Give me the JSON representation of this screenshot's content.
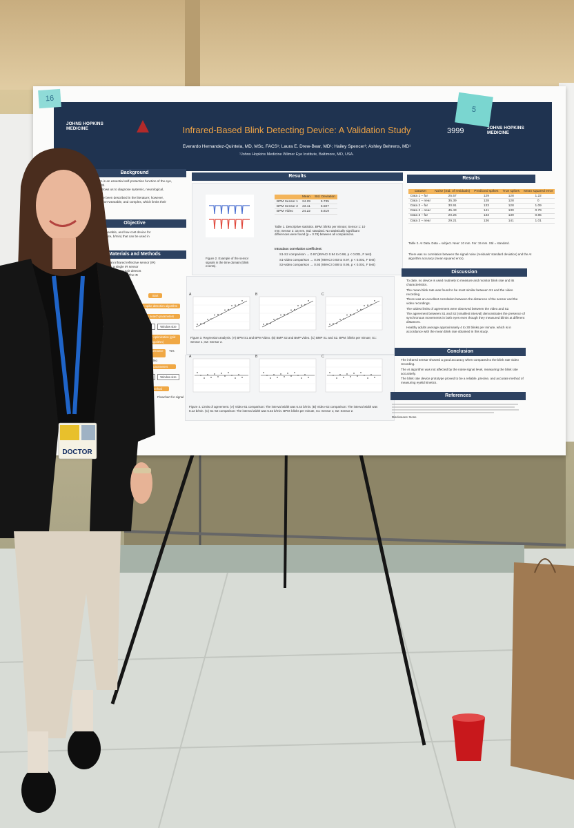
{
  "poster": {
    "logo_left": "JOHNS HOPKINS MEDICINE",
    "logo_right": "JOHNS HOPKINS MEDICINE",
    "title": "Infrared-Based Blink Detecting Device: A Validation Study",
    "number": "3999",
    "authors": "Everardo Hernandez-Quintela, MD, MSc, FACS¹; Laura E. Drew-Bear, MD¹; Hailey Spencer¹; Ashley Behrens, MD¹",
    "affiliation": "¹Johns Hopkins Medicine Wilmer Eye Institute, Baltimore, MD, USA.",
    "background": {
      "heading": "Background",
      "lines": [
        "mechanism is an essential self-protection function of the eye,",
        "ocular health.",
        "dynamics allows us to diagnose systemic, neurological,",
        "diseases.",
        "devices have been described in the literature; however,",
        "expensive, non-wearable, and complex, which limits their"
      ]
    },
    "objective": {
      "heading": "Objective",
      "lines": [
        "date a safe, wearable, and low-cost device for",
        "(blinks per minute, b/min) that can be used in"
      ]
    },
    "methods": {
      "heading": "Materials and Methods",
      "lines": [
        "developed using an infrared reflective sensor (IR)",
        "Each eye side has a single IR sensor",
        "and the IR emitter/detector pair detects",
        "the eyelid and ocular surface. The IR",
        "of the eye on the temple of"
      ],
      "flowchart": [
        "Start",
        "Noise spike detection algorithm",
        "Define search parameters",
        "Threshold",
        "Window size",
        "Parameter optimization (grid algorithm)",
        "Best performance",
        "Yes",
        "No",
        "Optimal parameters",
        "Threshold",
        "Window size",
        "Optimal method"
      ],
      "caption": "Flowchart for signal"
    },
    "results_left": {
      "heading": "Results",
      "figure2_caption": "Figure 2. Example of the sensor signals in the time domain (blink events).",
      "table1": {
        "columns": [
          "Mean",
          "Std. Deviation"
        ],
        "rows": [
          [
            "BPM Sensor 1",
            24.29,
            5.735
          ],
          [
            "BPM Sensor 2",
            23.11,
            5.507
          ],
          [
            "BPM Video",
            24.22,
            5.819
          ]
        ]
      },
      "table1_caption": "Table 1. Descriptive statistics. BPM: blinks per minute; Sensor 1: 10 mm; Sensor 2: 15 mm. Std: standard. No statistically significant differences were found (p = 0.78) between all comparisons.",
      "icc_heading": "Intraclass correlation coefficient:",
      "icc": [
        "S1-S2 comparison → 0.97 (95%CI 0.94 to 0.98, p < 0.001, F test)",
        "S1-video comparison → 0.96 (95%CI 0.93 to 0.97, p < 0.001, F test)",
        "S2-video comparison → 0.93 (95%CI 0.88 to 0.96, p < 0.001, F test)"
      ],
      "figure3_caption": "Figure 3. Regression analysis. (A) BPM S1 and BPM Video. (B) BMP S2 and BMP Video. (C) BMP S1 and S2. BPM: blinks per minute; S1: Sensor 1; S2: Sensor 2.",
      "figure4_caption": "Figure 4. Limits of agreement. (A) Video-S1 comparison: The interval width was 6.44 b/min. (B) Video-S2 comparison: The interval width was 8.12 b/min. (C) S1-S2 comparison: The interval width was 5.32 b/min. BPM: blinks per minute, S1: Sensor 1; S2: Sensor 2.",
      "panel_letters": [
        "A",
        "B",
        "C"
      ]
    },
    "results_right": {
      "heading": "Results",
      "table2": {
        "columns": [
          "Dataset",
          "Noise (Std. of residuals)",
          "Predicted spikes",
          "True spikes",
          "Mean squared error"
        ],
        "rows": [
          [
            "Data 1 – far",
            25.57,
            129,
            128,
            1.22
          ],
          [
            "Data 1 – near",
            35.39,
            128,
            128,
            0
          ],
          [
            "Data 2 – far",
            30.91,
            133,
            128,
            1.09
          ],
          [
            "Data 2 – near",
            45.43,
            141,
            130,
            0.79
          ],
          [
            "Data 3 – far",
            20.26,
            133,
            139,
            0.85
          ],
          [
            "Data 3 – near",
            29.21,
            136,
            141,
            1.01
          ]
        ]
      },
      "table2_caption": "Table 2. AI Data. Data = subject. Near: 10 mm. Far: 15 mm. Std = standard.",
      "note": "There was no correlation between the signal noise (residuals' standard deviation) and the AI algorithm accuracy (mean squared error)."
    },
    "discussion": {
      "heading": "Discussion",
      "items": [
        "To date, no device is used routinely to measure and monitor blink rate and its characteristics.",
        "The mean blink rate was found to be most similar between S1 and the video recording.",
        "There was an excellent correlation between the distances of the sensor and the video recordings.",
        "The widest limits of agreement were observed between the video and S2.",
        "The agreement between S1 and S2 (smallest interval) demonstrates the presence of synchronous movements in both eyes even though they measured blinks at different distances.",
        "Healthy adults average approximately 4 to 30 blinks per minute, which is in accordance with the mean blink rate obtained in this study."
      ]
    },
    "conclusion": {
      "heading": "Conclusion",
      "items": [
        "The infrared sensor showed a good accuracy when compared to the blink rate video recording.",
        "The AI algorithm was not affected by the noise signal level, measuring the blink rate accurately.",
        "The blink rate device prototype proved to be a reliable, precise, and accurate method of measuring eyelid kinetics."
      ]
    },
    "references": {
      "heading": "References",
      "disclosures": "Disclosures: None"
    }
  },
  "sticky_notes": [
    "16",
    "5"
  ],
  "badge": "DOCTOR"
}
